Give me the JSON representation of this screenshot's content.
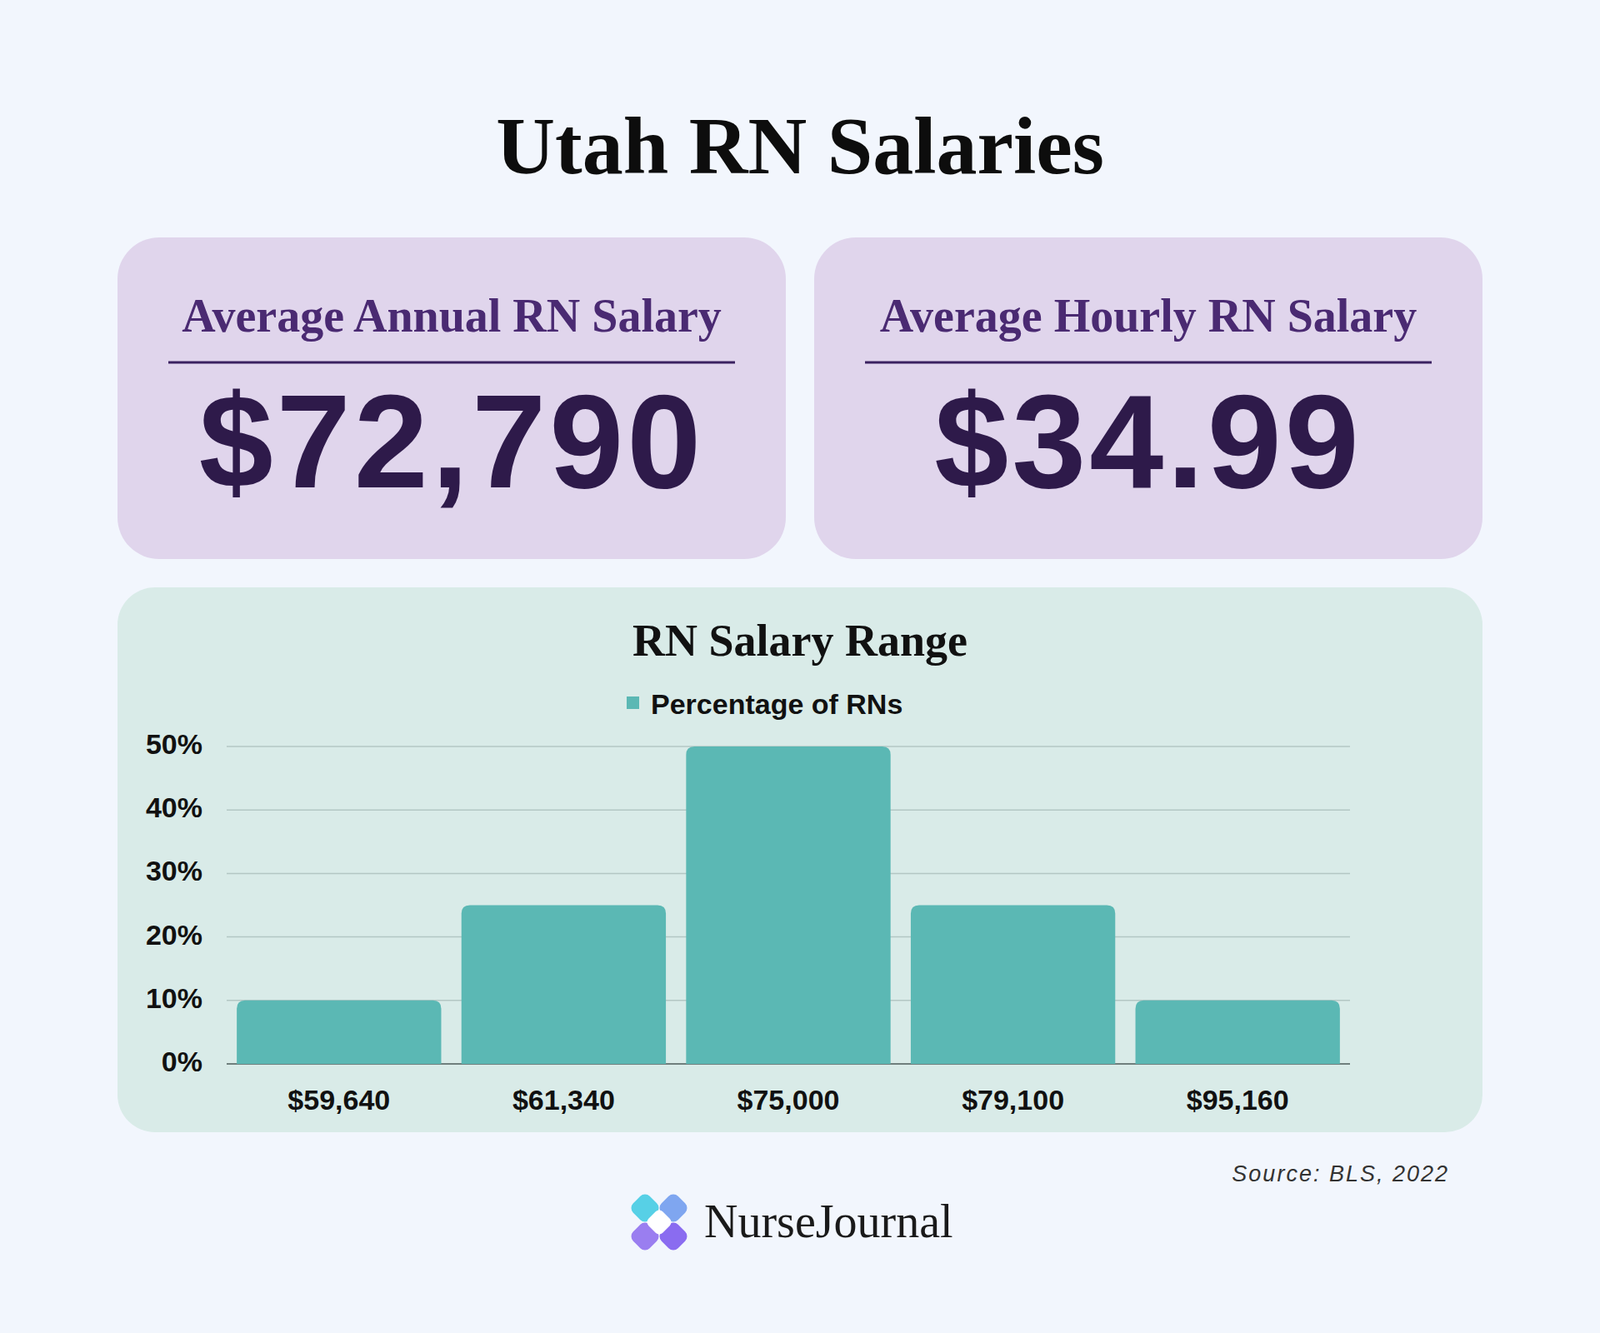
{
  "title": "Utah RN Salaries",
  "cards": [
    {
      "label": "Average Annual RN Salary",
      "value": "$72,790"
    },
    {
      "label": "Average Hourly RN Salary",
      "value": "$34.99"
    }
  ],
  "chart_data": {
    "type": "bar",
    "title": "RN Salary Range",
    "categories": [
      "$59,640",
      "$61,340",
      "$75,000",
      "$79,100",
      "$95,160"
    ],
    "series": [
      {
        "name": "Percentage of RNs",
        "color": "#5bb8b4",
        "values": [
          10,
          25,
          50,
          25,
          10
        ]
      }
    ],
    "ylim": [
      0,
      50
    ],
    "yticks": [
      {
        "value": 0,
        "label": "0%"
      },
      {
        "value": 10,
        "label": "10%"
      },
      {
        "value": 20,
        "label": "20%"
      },
      {
        "value": 30,
        "label": "30%"
      },
      {
        "value": 40,
        "label": "40%"
      },
      {
        "value": 50,
        "label": "50%"
      }
    ],
    "grid": true,
    "legend": "top"
  },
  "source": "Source: BLS, 2022",
  "brand": "NurseJournal"
}
